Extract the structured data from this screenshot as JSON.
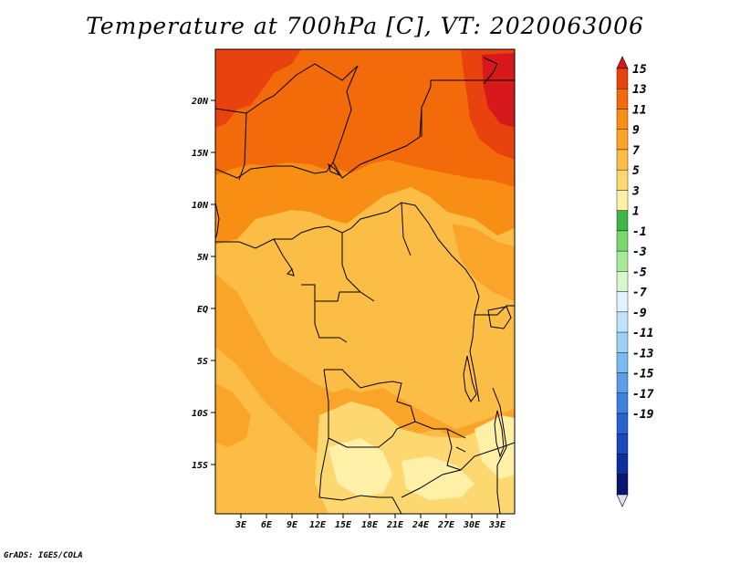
{
  "title": "Temperature at 700hPa [C], VT: 2020063006",
  "credit": "GrADS: IGES/COLA",
  "map": {
    "lat_ticks": [
      "20N",
      "15N",
      "10N",
      "5N",
      "EQ",
      "5S",
      "10S",
      "15S"
    ],
    "lon_ticks": [
      "3E",
      "6E",
      "9E",
      "12E",
      "15E",
      "18E",
      "21E",
      "24E",
      "27E",
      "30E",
      "33E"
    ]
  },
  "colorbar": {
    "labels": [
      "15",
      "13",
      "11",
      "9",
      "7",
      "5",
      "3",
      "1",
      "-1",
      "-3",
      "-5",
      "-7",
      "-9",
      "-11",
      "-13",
      "-15",
      "-17",
      "-19"
    ],
    "colors": [
      "#d7191c",
      "#e8420e",
      "#f26a0a",
      "#f88e13",
      "#faa42a",
      "#fbbd45",
      "#fdd871",
      "#fff0a8",
      "#3fb54a",
      "#78d86a",
      "#a7ea9a",
      "#d6f7cf",
      "#e1f3fa",
      "#bfe3f9",
      "#9ed0f5",
      "#7cb9f0",
      "#5c9de8",
      "#3f80df",
      "#2a63cf",
      "#1a47bb",
      "#0f2d9e",
      "#0a1670",
      "#e0def5"
    ],
    "count_labels": 18
  },
  "field_colors": {
    "c15": "#d7191c",
    "c13": "#e8420e",
    "c11": "#f26a0a",
    "c9": "#f88e13",
    "c7": "#faa42a",
    "c5": "#fbbd45",
    "c3": "#fdd871",
    "c1": "#fff0a8"
  }
}
